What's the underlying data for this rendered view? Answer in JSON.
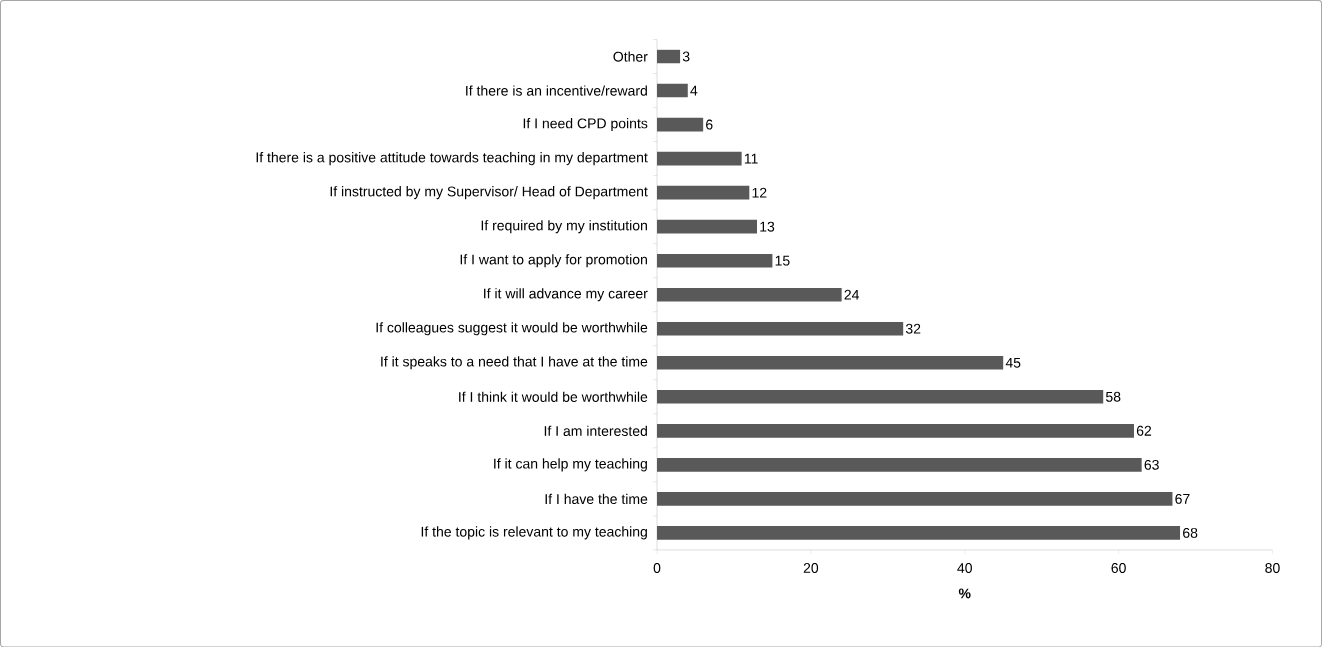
{
  "chart_data": {
    "type": "bar",
    "orientation": "horizontal",
    "xlabel": "%",
    "categories": [
      "Other",
      "If there is an incentive/reward",
      "If I need CPD points",
      "If there is a positive attitude towards teaching in my department",
      "If instructed by my Supervisor/ Head of Department",
      "If required by my institution",
      "If I want to apply for promotion",
      "If it will advance my career",
      "If colleagues suggest it would be worthwhile",
      "If it speaks to a need that I have at the time",
      "If I think it would be worthwhile",
      "If I am interested",
      "If it can help my teaching",
      "If I have the time",
      "If the topic is relevant to my teaching"
    ],
    "values": [
      3,
      4,
      6,
      11,
      12,
      13,
      15,
      24,
      32,
      45,
      58,
      62,
      63,
      67,
      68
    ],
    "color": "#595959",
    "xlim": [
      0,
      80
    ],
    "xticks": [
      0,
      20,
      40,
      60,
      80
    ],
    "data_labels": true,
    "grid": false
  }
}
